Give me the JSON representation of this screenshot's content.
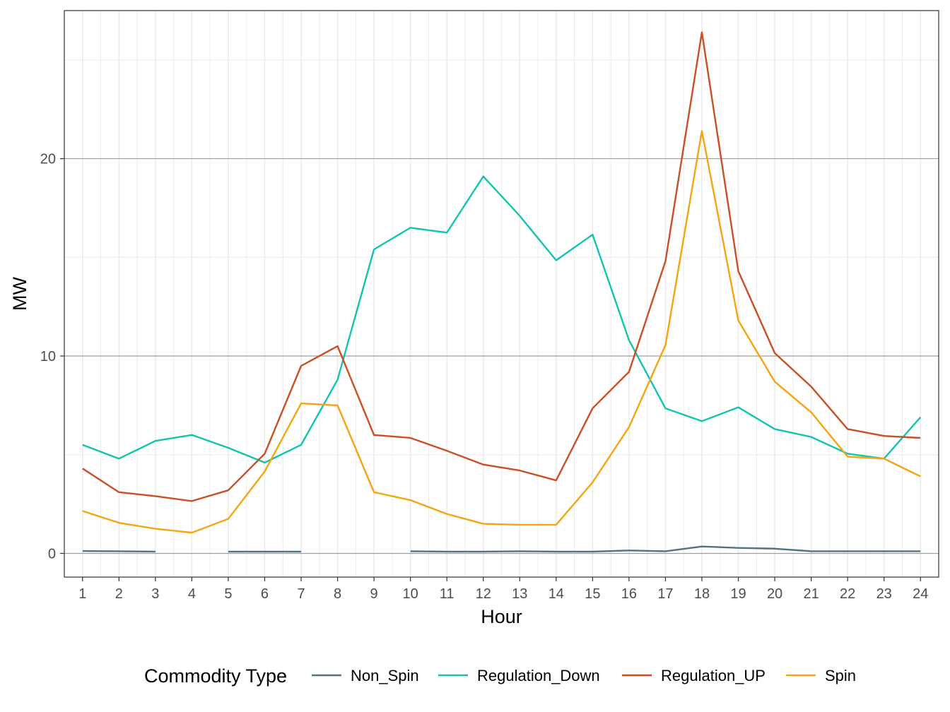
{
  "chart_data": {
    "type": "line",
    "title": "",
    "xlabel": "Hour",
    "ylabel": "MW",
    "x": [
      1,
      2,
      3,
      4,
      5,
      6,
      7,
      8,
      9,
      10,
      11,
      12,
      13,
      14,
      15,
      16,
      17,
      18,
      19,
      20,
      21,
      22,
      23,
      24
    ],
    "x_tick_labels": [
      "1",
      "2",
      "3",
      "4",
      "5",
      "6",
      "7",
      "8",
      "9",
      "10",
      "11",
      "12",
      "13",
      "14",
      "15",
      "16",
      "17",
      "18",
      "19",
      "20",
      "21",
      "22",
      "23",
      "24"
    ],
    "ylim": [
      -1.2,
      27.5
    ],
    "y_ticks": [
      0,
      10,
      20
    ],
    "y_tick_labels": [
      "0",
      "10",
      "20"
    ],
    "grid": true,
    "legend_title": "Commodity Type",
    "legend_position": "bottom",
    "series": [
      {
        "name": "Non_Spin",
        "color": "#4e7383",
        "values": [
          0.12,
          0.11,
          0.09,
          null,
          0.09,
          0.09,
          0.09,
          null,
          null,
          0.11,
          0.09,
          0.09,
          0.11,
          0.09,
          0.09,
          0.15,
          0.11,
          0.35,
          0.28,
          0.24,
          0.11,
          0.11,
          0.11,
          0.11
        ]
      },
      {
        "name": "Regulation_Down",
        "color": "#10c4b1",
        "values": [
          5.5,
          4.8,
          5.7,
          6.0,
          5.35,
          4.6,
          5.5,
          8.8,
          15.4,
          16.5,
          16.25,
          19.1,
          17.1,
          14.85,
          16.15,
          10.8,
          7.35,
          6.7,
          7.4,
          6.3,
          5.9,
          5.05,
          4.8,
          6.9
        ]
      },
      {
        "name": "Regulation_UP",
        "color": "#cc4e24",
        "values": [
          4.3,
          3.1,
          2.9,
          2.65,
          3.2,
          5.05,
          9.5,
          10.5,
          6.0,
          5.85,
          5.2,
          4.5,
          4.2,
          3.7,
          7.35,
          9.2,
          14.8,
          26.4,
          14.3,
          10.15,
          8.45,
          6.3,
          5.95,
          5.85
        ]
      },
      {
        "name": "Spin",
        "color": "#f6a410",
        "values": [
          2.15,
          1.55,
          1.25,
          1.05,
          1.75,
          4.15,
          7.6,
          7.5,
          3.1,
          2.7,
          2.0,
          1.5,
          1.45,
          1.45,
          3.6,
          6.4,
          10.55,
          21.4,
          11.8,
          8.7,
          7.15,
          4.9,
          4.8,
          3.9
        ]
      }
    ]
  }
}
